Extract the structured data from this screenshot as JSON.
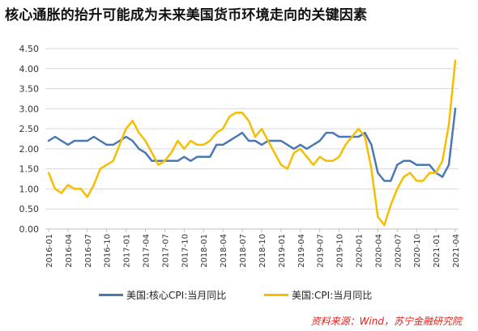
{
  "title": "核心通胀的抬升可能成为未来美国货币环境走向的关键因素",
  "source": "资料来源：Wind，苏宁金融研究院",
  "colors": {
    "core": "#4a78b4",
    "cpi": "#f7bd00",
    "grid": "#d9d9d9",
    "axis": "#bfbfbf"
  },
  "chart_data": {
    "type": "line",
    "title": "核心通胀的抬升可能成为未来美国货币环境走向的关键因素",
    "ylim": [
      0,
      4.5
    ],
    "yticks": [
      "0.00",
      "0.50",
      "1.00",
      "1.50",
      "2.00",
      "2.50",
      "3.00",
      "3.50",
      "4.00",
      "4.50"
    ],
    "x_ticks": [
      "2016-01",
      "2016-04",
      "2016-07",
      "2016-10",
      "2017-01",
      "2017-04",
      "2017-07",
      "2017-10",
      "2018-01",
      "2018-04",
      "2018-07",
      "2018-10",
      "2019-01",
      "2019-04",
      "2019-07",
      "2019-10",
      "2020-01",
      "2020-04",
      "2020-07",
      "2020-10",
      "2021-01",
      "2021-04"
    ],
    "grid": "horizontal",
    "legend": "bottom",
    "series": [
      {
        "name": "美国:核心CPI:当月同比",
        "color": "#4a78b4",
        "values": [
          2.2,
          2.3,
          2.2,
          2.1,
          2.2,
          2.2,
          2.2,
          2.3,
          2.2,
          2.1,
          2.1,
          2.2,
          2.3,
          2.2,
          2.0,
          1.9,
          1.7,
          1.7,
          1.7,
          1.7,
          1.7,
          1.8,
          1.7,
          1.8,
          1.8,
          1.8,
          2.1,
          2.1,
          2.2,
          2.3,
          2.4,
          2.2,
          2.2,
          2.1,
          2.2,
          2.2,
          2.2,
          2.1,
          2.0,
          2.1,
          2.0,
          2.1,
          2.2,
          2.4,
          2.4,
          2.3,
          2.3,
          2.3,
          2.3,
          2.4,
          2.1,
          1.4,
          1.2,
          1.2,
          1.6,
          1.7,
          1.7,
          1.6,
          1.6,
          1.6,
          1.4,
          1.3,
          1.6,
          3.0
        ]
      },
      {
        "name": "美国:CPI:当月同比",
        "color": "#f7bd00",
        "values": [
          1.4,
          1.0,
          0.9,
          1.1,
          1.0,
          1.0,
          0.8,
          1.1,
          1.5,
          1.6,
          1.7,
          2.1,
          2.5,
          2.7,
          2.4,
          2.2,
          1.9,
          1.6,
          1.7,
          1.9,
          2.2,
          2.0,
          2.2,
          2.1,
          2.1,
          2.2,
          2.4,
          2.5,
          2.8,
          2.9,
          2.9,
          2.7,
          2.3,
          2.5,
          2.2,
          1.9,
          1.6,
          1.5,
          1.9,
          2.0,
          1.8,
          1.6,
          1.8,
          1.7,
          1.7,
          1.8,
          2.1,
          2.3,
          2.5,
          2.3,
          1.5,
          0.3,
          0.1,
          0.6,
          1.0,
          1.3,
          1.4,
          1.2,
          1.2,
          1.4,
          1.4,
          1.7,
          2.6,
          4.2
        ]
      }
    ]
  }
}
